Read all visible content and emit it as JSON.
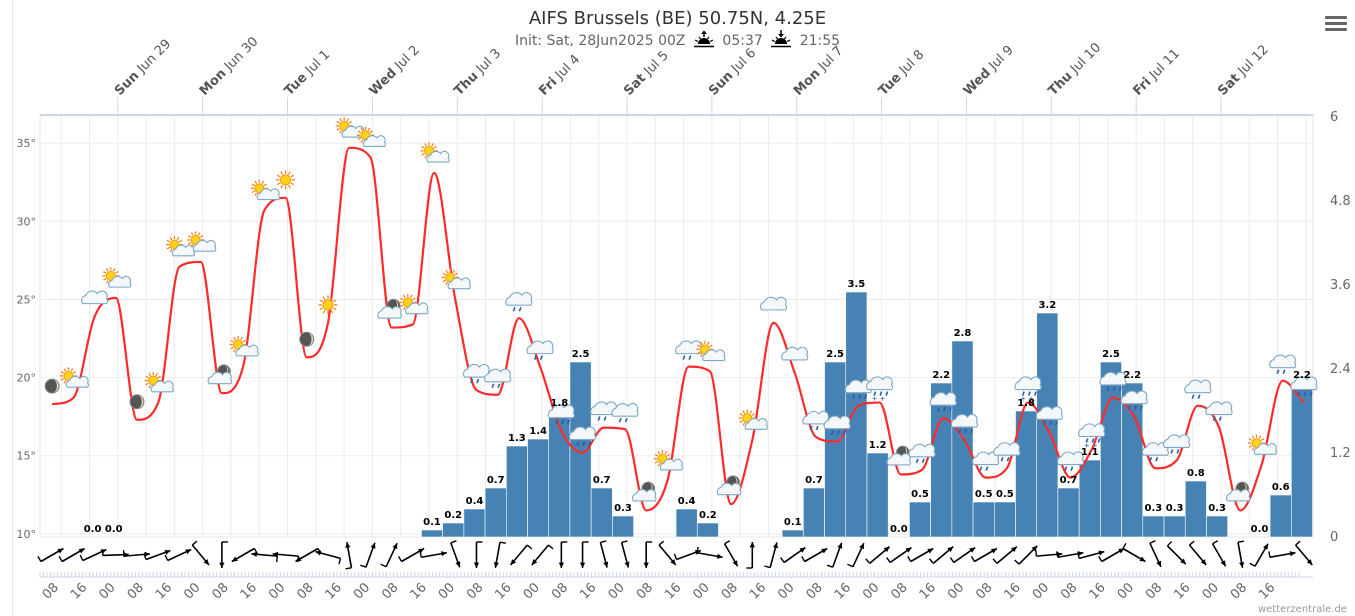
{
  "header": {
    "title": "AIFS Brussels (BE) 50.75N, 4.25E",
    "init": "Init: Sat, 28Jun2025 00Z",
    "sunrise": "05:37",
    "sunset": "21:55"
  },
  "menu_icon": "hamburger-menu-icon",
  "credit": "wetterzentrale.de",
  "colors": {
    "temperature_line": "#ff2a2a",
    "precip_bar": "#4682b4",
    "grid": "#ececec",
    "axis_line": "#ccd6eb"
  },
  "chart_data": {
    "type": "combo",
    "grid": true,
    "x_range": [
      "2025-06-28T02:00",
      "2025-07-13T02:00"
    ],
    "day_labels": [
      {
        "day": "Sun",
        "date": "Jun 29",
        "time": "2025-06-29T00:00"
      },
      {
        "day": "Mon",
        "date": "Jun 30",
        "time": "2025-06-30T00:00"
      },
      {
        "day": "Tue",
        "date": "Jul 1",
        "time": "2025-07-01T00:00"
      },
      {
        "day": "Wed",
        "date": "Jul 2",
        "time": "2025-07-02T00:00"
      },
      {
        "day": "Thu",
        "date": "Jul 3",
        "time": "2025-07-03T00:00"
      },
      {
        "day": "Fri",
        "date": "Jul 4",
        "time": "2025-07-04T00:00"
      },
      {
        "day": "Sat",
        "date": "Jul 5",
        "time": "2025-07-05T00:00"
      },
      {
        "day": "Sun",
        "date": "Jul 6",
        "time": "2025-07-06T00:00"
      },
      {
        "day": "Mon",
        "date": "Jul 7",
        "time": "2025-07-07T00:00"
      },
      {
        "day": "Tue",
        "date": "Jul 8",
        "time": "2025-07-08T00:00"
      },
      {
        "day": "Wed",
        "date": "Jul 9",
        "time": "2025-07-09T00:00"
      },
      {
        "day": "Thu",
        "date": "Jul 10",
        "time": "2025-07-10T00:00"
      },
      {
        "day": "Fri",
        "date": "Jul 11",
        "time": "2025-07-11T00:00"
      },
      {
        "day": "Sat",
        "date": "Jul 12",
        "time": "2025-07-12T00:00"
      }
    ],
    "x_ticks": {
      "start": "2025-06-28T08:00",
      "step_hours": 8,
      "labels": [
        "08",
        "16",
        "00",
        "08",
        "16",
        "00",
        "08",
        "16",
        "00",
        "08",
        "16",
        "00",
        "08",
        "16",
        "00",
        "08",
        "16",
        "00",
        "08",
        "16",
        "00",
        "08",
        "16",
        "00",
        "08",
        "16",
        "00",
        "08",
        "16",
        "00",
        "08",
        "16",
        "00",
        "08",
        "16",
        "00",
        "08",
        "16",
        "00",
        "08",
        "16",
        "00",
        "08",
        "16"
      ]
    },
    "y_left": {
      "range": [
        9.8,
        36.8
      ],
      "ticks": [
        10,
        15,
        20,
        25,
        30,
        35
      ],
      "tick_labels": [
        "10°",
        "15°",
        "20°",
        "25°",
        "30°",
        "35°"
      ]
    },
    "y_right": {
      "range": [
        0,
        6
      ],
      "ticks": [
        0,
        1.2,
        2.4,
        3.6,
        4.8,
        6
      ],
      "tick_labels": [
        "0",
        "1.2",
        "2.4",
        "3.6",
        "4.8",
        "6"
      ]
    },
    "times": [
      "2025-06-28T06:00",
      "2025-06-28T12:00",
      "2025-06-28T18:00",
      "2025-06-29T00:00",
      "2025-06-29T06:00",
      "2025-06-29T12:00",
      "2025-06-29T18:00",
      "2025-06-30T00:00",
      "2025-06-30T06:00",
      "2025-06-30T12:00",
      "2025-06-30T18:00",
      "2025-07-01T00:00",
      "2025-07-01T06:00",
      "2025-07-01T12:00",
      "2025-07-01T18:00",
      "2025-07-02T00:00",
      "2025-07-02T06:00",
      "2025-07-02T12:00",
      "2025-07-02T18:00",
      "2025-07-03T00:00",
      "2025-07-03T06:00",
      "2025-07-03T12:00",
      "2025-07-03T18:00",
      "2025-07-04T00:00",
      "2025-07-04T06:00",
      "2025-07-04T12:00",
      "2025-07-04T18:00",
      "2025-07-05T00:00",
      "2025-07-05T06:00",
      "2025-07-05T12:00",
      "2025-07-05T18:00",
      "2025-07-06T00:00",
      "2025-07-06T06:00",
      "2025-07-06T12:00",
      "2025-07-06T18:00",
      "2025-07-07T00:00",
      "2025-07-07T06:00",
      "2025-07-07T12:00",
      "2025-07-07T18:00",
      "2025-07-08T00:00",
      "2025-07-08T06:00",
      "2025-07-08T12:00",
      "2025-07-08T18:00",
      "2025-07-09T00:00",
      "2025-07-09T06:00",
      "2025-07-09T12:00",
      "2025-07-09T18:00",
      "2025-07-10T00:00",
      "2025-07-10T06:00",
      "2025-07-10T12:00",
      "2025-07-10T18:00",
      "2025-07-11T00:00",
      "2025-07-11T06:00",
      "2025-07-11T12:00",
      "2025-07-11T18:00",
      "2025-07-12T00:00",
      "2025-07-12T06:00",
      "2025-07-12T12:00",
      "2025-07-12T18:00",
      "2025-07-13T00:00"
    ],
    "temperature": [
      18.3,
      18.7,
      23.9,
      25.1,
      17.3,
      18.4,
      27.1,
      27.4,
      19.0,
      20.7,
      30.7,
      31.5,
      21.3,
      23.5,
      34.7,
      34.1,
      23.2,
      23.4,
      33.1,
      25.0,
      19.2,
      18.9,
      23.8,
      20.7,
      16.6,
      15.2,
      16.8,
      16.7,
      11.5,
      13.4,
      20.7,
      20.4,
      11.9,
      16.0,
      23.5,
      20.3,
      16.2,
      15.9,
      18.2,
      18.4,
      13.8,
      14.1,
      17.4,
      16.0,
      13.6,
      14.2,
      18.4,
      16.5,
      13.6,
      15.4,
      18.7,
      17.5,
      14.2,
      14.7,
      18.2,
      16.8,
      11.5,
      14.4,
      19.8,
      18.4
    ],
    "weather_icons": [
      "moon",
      "sun-cloud",
      "cloud",
      "sun-cloud",
      "moon",
      "sun-cloud",
      "sun-cloud",
      "sun-cloud",
      "moon-cloud",
      "sun-cloud",
      "sun-cloud",
      "sun",
      "moon",
      "sun",
      "sun-cloud",
      "sun-cloud",
      "moon-cloud",
      "sun-cloud",
      "sun-cloud",
      "sun-cloud",
      "rain-cloud",
      "rain-cloud",
      "rain-cloud",
      "rain-cloud",
      "shower-cloud",
      "shower-cloud",
      "rain-cloud",
      "rain-cloud",
      "moon-cloud",
      "sun-cloud",
      "rain-cloud",
      "sun-cloud",
      "moon-cloud",
      "sun-cloud",
      "cloud",
      "cloud",
      "rain-cloud",
      "shower-cloud",
      "shower-cloud",
      "shower-cloud",
      "moon-cloud",
      "rain-cloud",
      "shower-cloud",
      "shower-cloud",
      "rain-cloud",
      "rain-cloud",
      "shower-cloud",
      "shower-cloud",
      "rain-cloud",
      "shower-cloud",
      "shower-cloud",
      "shower-cloud",
      "rain-cloud",
      "rain-cloud",
      "rain-cloud",
      "rain-cloud",
      "moon-cloud",
      "sun-cloud",
      "rain-cloud",
      "shower-cloud"
    ],
    "wind_direction_heading_deg": [
      60,
      60,
      65,
      88,
      85,
      70,
      65,
      140,
      180,
      240,
      275,
      275,
      240,
      285,
      350,
      20,
      25,
      60,
      80,
      160,
      180,
      190,
      220,
      220,
      180,
      180,
      165,
      165,
      180,
      140,
      70,
      100,
      150,
      0,
      15,
      55,
      60,
      20,
      25,
      50,
      55,
      60,
      50,
      55,
      60,
      50,
      45,
      85,
      80,
      75,
      60,
      120,
      155,
      135,
      140,
      150,
      170,
      30,
      80,
      140
    ],
    "precipitation": [
      {
        "time": "2025-06-28T18:00",
        "value": 0.0,
        "label": "0.0"
      },
      {
        "time": "2025-06-29T00:00",
        "value": 0.0,
        "label": "0.0"
      },
      {
        "time": "2025-07-02T18:00",
        "value": 0.1,
        "label": "0.1"
      },
      {
        "time": "2025-07-03T00:00",
        "value": 0.2,
        "label": "0.2"
      },
      {
        "time": "2025-07-03T06:00",
        "value": 0.4,
        "label": "0.4"
      },
      {
        "time": "2025-07-03T12:00",
        "value": 0.7,
        "label": "0.7"
      },
      {
        "time": "2025-07-03T18:00",
        "value": 1.3,
        "label": "1.3"
      },
      {
        "time": "2025-07-04T00:00",
        "value": 1.4,
        "label": "1.4"
      },
      {
        "time": "2025-07-04T06:00",
        "value": 1.8,
        "label": "1.8"
      },
      {
        "time": "2025-07-04T12:00",
        "value": 2.5,
        "label": "2.5"
      },
      {
        "time": "2025-07-04T18:00",
        "value": 0.7,
        "label": "0.7"
      },
      {
        "time": "2025-07-05T00:00",
        "value": 0.3,
        "label": "0.3"
      },
      {
        "time": "2025-07-05T18:00",
        "value": 0.4,
        "label": "0.4"
      },
      {
        "time": "2025-07-06T00:00",
        "value": 0.2,
        "label": "0.2"
      },
      {
        "time": "2025-07-07T00:00",
        "value": 0.1,
        "label": "0.1"
      },
      {
        "time": "2025-07-07T06:00",
        "value": 0.7,
        "label": "0.7"
      },
      {
        "time": "2025-07-07T12:00",
        "value": 2.5,
        "label": "2.5"
      },
      {
        "time": "2025-07-07T18:00",
        "value": 3.5,
        "label": "3.5"
      },
      {
        "time": "2025-07-08T00:00",
        "value": 1.2,
        "label": "1.2"
      },
      {
        "time": "2025-07-08T06:00",
        "value": 0.0,
        "label": "0.0"
      },
      {
        "time": "2025-07-08T12:00",
        "value": 0.5,
        "label": "0.5"
      },
      {
        "time": "2025-07-08T18:00",
        "value": 2.2,
        "label": "2.2"
      },
      {
        "time": "2025-07-09T00:00",
        "value": 2.8,
        "label": "2.8"
      },
      {
        "time": "2025-07-09T06:00",
        "value": 0.5,
        "label": "0.5"
      },
      {
        "time": "2025-07-09T12:00",
        "value": 0.5,
        "label": "0.5"
      },
      {
        "time": "2025-07-09T18:00",
        "value": 1.8,
        "label": "1.8"
      },
      {
        "time": "2025-07-10T00:00",
        "value": 3.2,
        "label": "3.2"
      },
      {
        "time": "2025-07-10T06:00",
        "value": 0.7,
        "label": "0.7"
      },
      {
        "time": "2025-07-10T12:00",
        "value": 1.1,
        "label": "1.1"
      },
      {
        "time": "2025-07-10T18:00",
        "value": 2.5,
        "label": "2.5"
      },
      {
        "time": "2025-07-11T00:00",
        "value": 2.2,
        "label": "2.2"
      },
      {
        "time": "2025-07-11T06:00",
        "value": 0.3,
        "label": "0.3"
      },
      {
        "time": "2025-07-11T12:00",
        "value": 0.3,
        "label": "0.3"
      },
      {
        "time": "2025-07-11T18:00",
        "value": 0.8,
        "label": "0.8"
      },
      {
        "time": "2025-07-12T00:00",
        "value": 0.3,
        "label": "0.3"
      },
      {
        "time": "2025-07-12T12:00",
        "value": 0.0,
        "label": "0.0"
      },
      {
        "time": "2025-07-12T18:00",
        "value": 0.6,
        "label": "0.6"
      },
      {
        "time": "2025-07-13T00:00",
        "value": 2.2,
        "label": "2.2"
      }
    ]
  }
}
